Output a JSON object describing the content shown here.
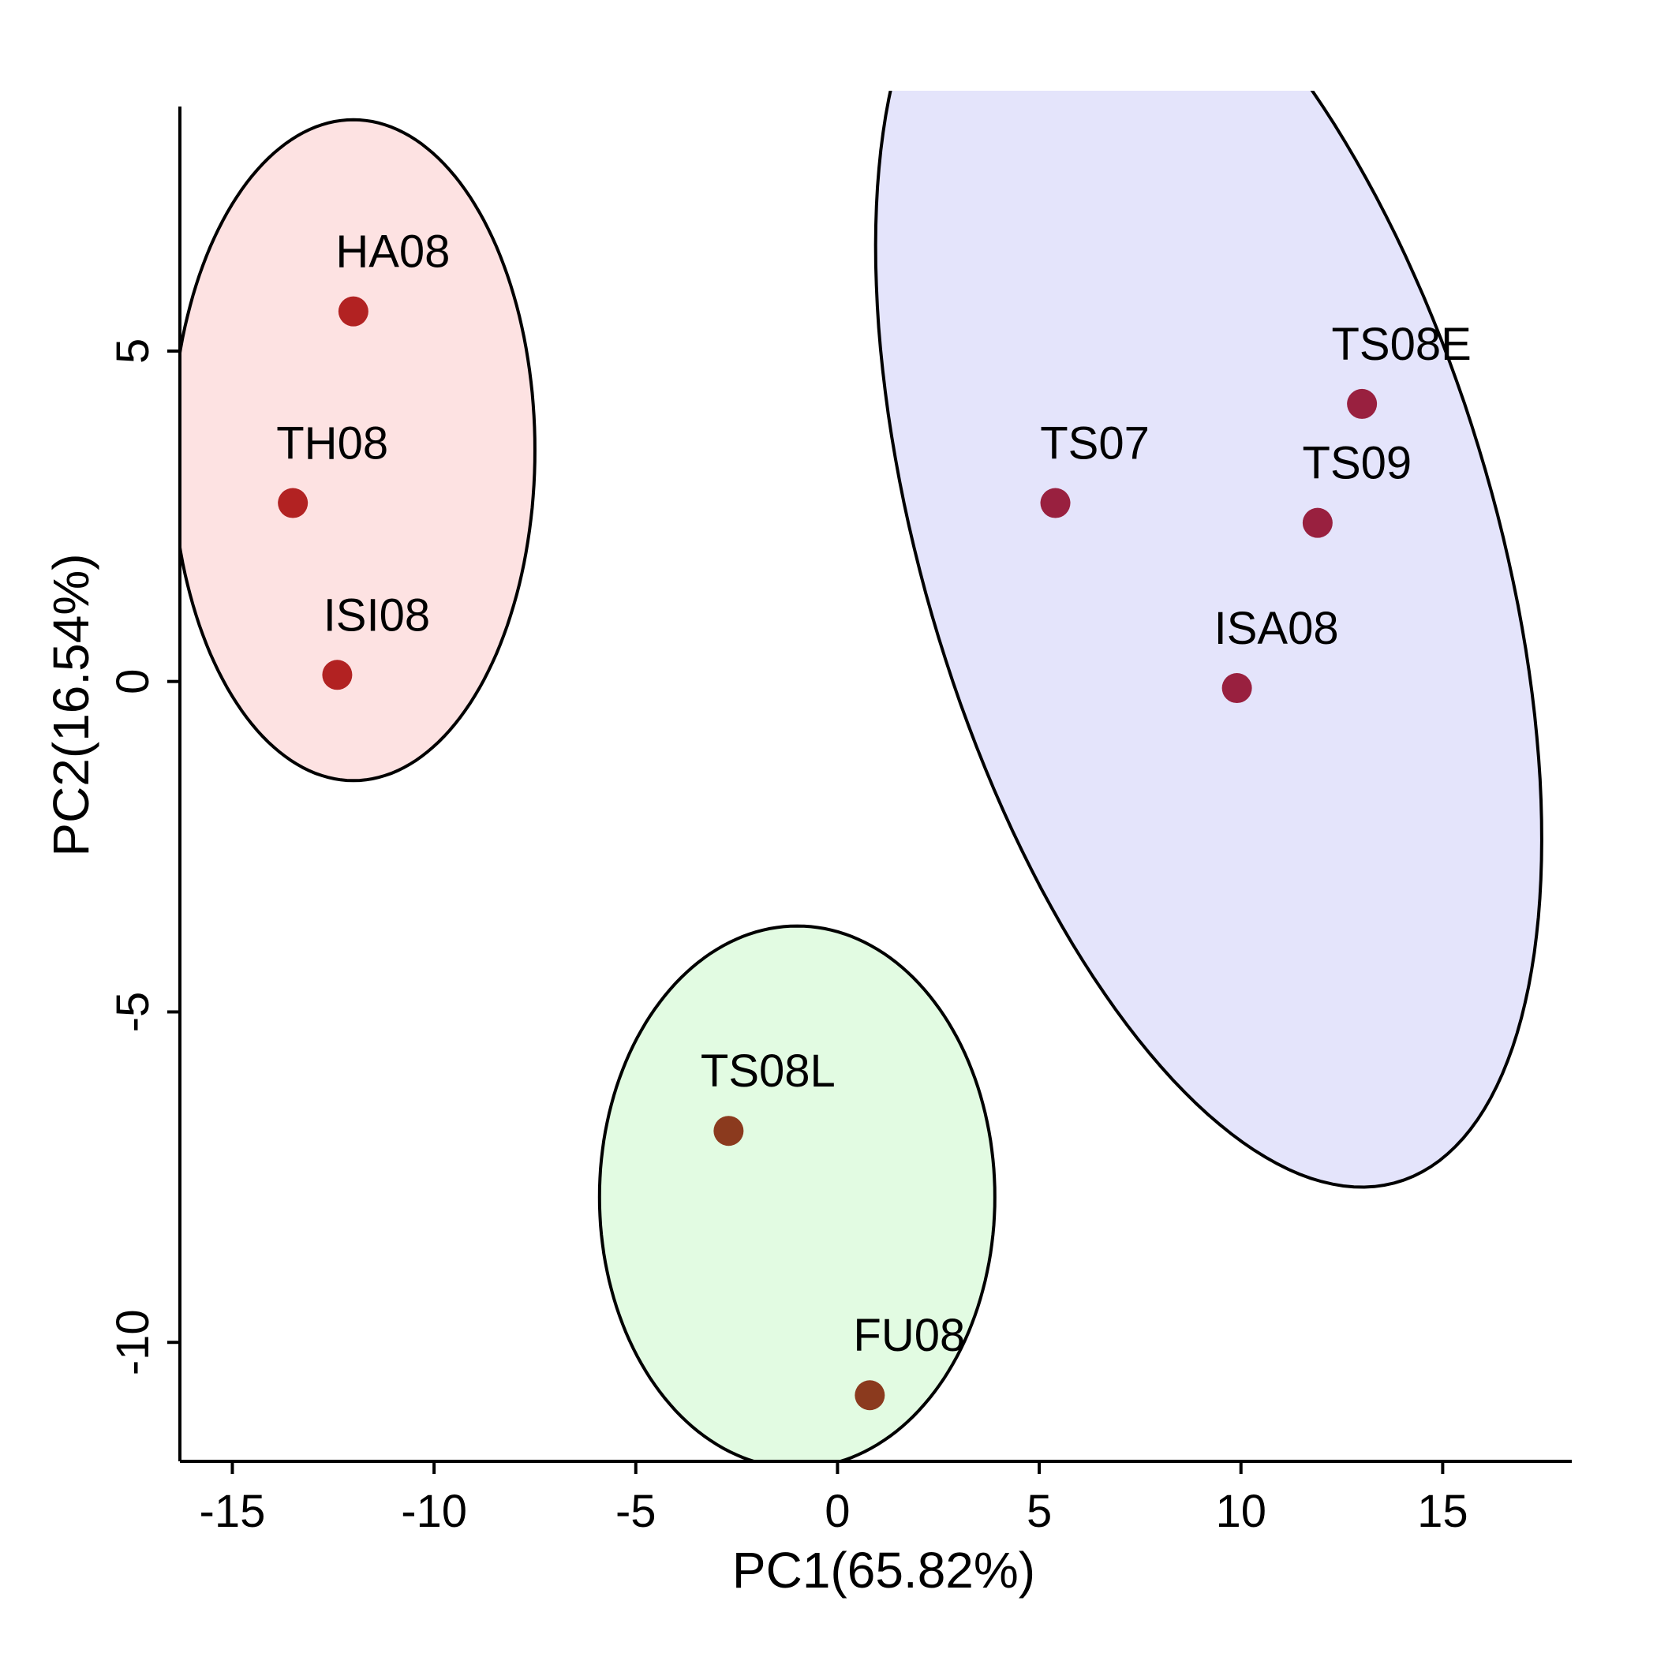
{
  "chart_data": {
    "type": "scatter",
    "xlabel": "PC1(65.82%)",
    "ylabel": "PC2(16.54%)",
    "xlim": [
      -16.3,
      18.2
    ],
    "ylim": [
      -11.8,
      8.7
    ],
    "x_ticks": [
      -15,
      -10,
      -5,
      0,
      5,
      10,
      15
    ],
    "y_ticks": [
      -10,
      -5,
      0,
      5
    ],
    "grid": false,
    "points": [
      {
        "label": "HA08",
        "x": -12.0,
        "y": 5.6,
        "color": "#b22222"
      },
      {
        "label": "TH08",
        "x": -13.5,
        "y": 2.7,
        "color": "#b22222"
      },
      {
        "label": "ISI08",
        "x": -12.4,
        "y": 0.1,
        "color": "#b22222"
      },
      {
        "label": "TS08E",
        "x": 13.0,
        "y": 4.2,
        "color": "#99203f"
      },
      {
        "label": "TS07",
        "x": 5.4,
        "y": 2.7,
        "color": "#99203f"
      },
      {
        "label": "TS09",
        "x": 11.9,
        "y": 2.4,
        "color": "#99203f"
      },
      {
        "label": "ISA08",
        "x": 9.9,
        "y": -0.1,
        "color": "#99203f"
      },
      {
        "label": "TS08L",
        "x": -2.7,
        "y": -6.8,
        "color": "#8b3a1e"
      },
      {
        "label": "FU08",
        "x": 0.8,
        "y": -10.8,
        "color": "#8b3a1e"
      }
    ],
    "groups": [
      {
        "fill": "#fde2e2",
        "cx": -12.0,
        "cy": 3.5,
        "rx": 4.5,
        "ry": 5.0,
        "angle_deg": 0
      },
      {
        "fill": "#e4e4fb",
        "cx": 9.2,
        "cy": 2.1,
        "rx": 6.5,
        "ry": 11.0,
        "angle_deg": 35
      },
      {
        "fill": "#e2fbe2",
        "cx": -1.0,
        "cy": -7.8,
        "rx": 4.9,
        "ry": 4.1,
        "angle_deg": 0
      }
    ]
  }
}
